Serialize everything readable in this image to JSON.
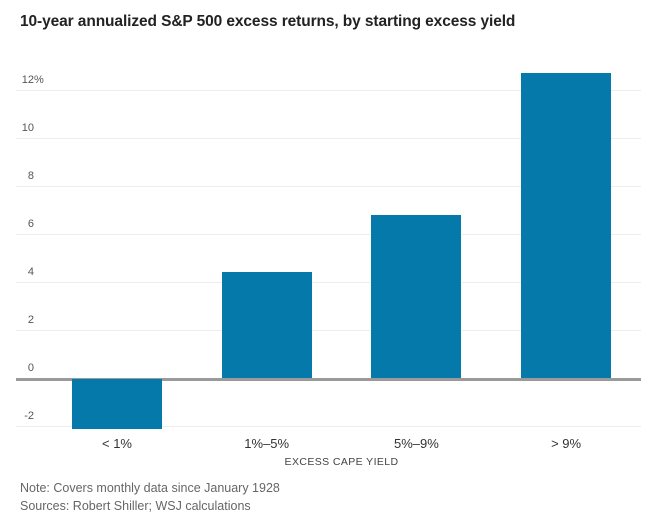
{
  "title": "10-year annualized S&P 500 excess returns, by starting excess yield",
  "chart_data": {
    "type": "bar",
    "categories": [
      "< 1%",
      "1%–5%",
      "5%–9%",
      "> 9%"
    ],
    "values": [
      -2.1,
      4.4,
      6.8,
      12.7
    ],
    "title": "10-year annualized S&P 500 excess returns, by starting excess yield",
    "xlabel": "EXCESS CAPE YIELD",
    "ylabel": "",
    "ylim": [
      -2.9,
      13.3
    ],
    "yticks": [
      {
        "value": 12,
        "label": "12",
        "suffix": "%"
      },
      {
        "value": 10,
        "label": "10",
        "suffix": ""
      },
      {
        "value": 8,
        "label": "8",
        "suffix": ""
      },
      {
        "value": 6,
        "label": "6",
        "suffix": ""
      },
      {
        "value": 4,
        "label": "4",
        "suffix": ""
      },
      {
        "value": 2,
        "label": "2",
        "suffix": ""
      },
      {
        "value": 0,
        "label": "0",
        "suffix": ""
      },
      {
        "value": -2,
        "label": "-2",
        "suffix": ""
      }
    ],
    "grid": true,
    "legend": "none",
    "colors": {
      "bar": "#0679ab",
      "zero_line": "#9a9a9a",
      "gridline": "#ededed"
    }
  },
  "footer": {
    "note": "Note: Covers monthly data since January 1928",
    "sources": "Sources: Robert Shiller; WSJ calculations"
  }
}
